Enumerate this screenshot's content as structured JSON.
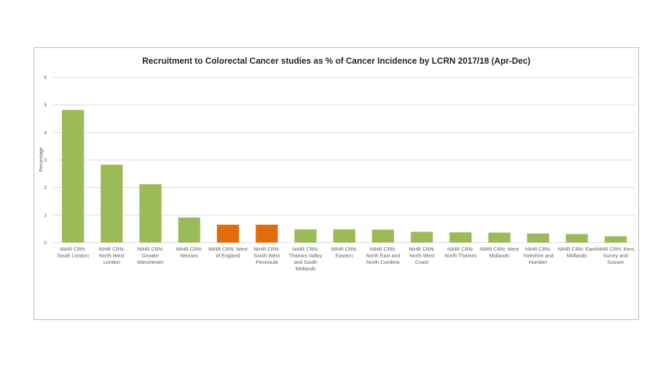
{
  "chart_data": {
    "type": "bar",
    "title": "Recruitment to Colorectal Cancer studies as % of Cancer Incidence by LCRN 2017/18 (Apr-Dec)",
    "xlabel": "",
    "ylabel": "Percentage",
    "ylim": [
      0,
      6
    ],
    "yticks": [
      "0",
      "1",
      "2",
      "3",
      "4",
      "5",
      "6"
    ],
    "grid": true,
    "categories": [
      [
        "NIHR CRN:",
        "South London"
      ],
      [
        "NIHR CRN:",
        "North West",
        "London"
      ],
      [
        "NIHR CRN:",
        "Greater",
        "Manchester"
      ],
      [
        "NIHR CRN:",
        "Wessex"
      ],
      [
        "NIHR CRN: West",
        "of England"
      ],
      [
        "NIHR CRN:",
        "South West",
        "Peninsula"
      ],
      [
        "NIHR CRN:",
        "Thames Valley",
        "and South",
        "Midlands"
      ],
      [
        "NIHR CRN:",
        "Eastern"
      ],
      [
        "NIHR CRN:",
        "North East and",
        "North Cumbria"
      ],
      [
        "NIHR CRN:",
        "North West",
        "Coast"
      ],
      [
        "NIHR CRN:",
        "North Thames"
      ],
      [
        "NIHR CRN: West",
        "Midlands"
      ],
      [
        "NIHR CRN:",
        "Yorkshire and",
        "Humber"
      ],
      [
        "NIHR CRN: East",
        "Midlands"
      ],
      [
        "NIHR CRN: Kent,",
        "Surrey and",
        "Sussex"
      ]
    ],
    "values": [
      4.82,
      2.83,
      2.12,
      0.91,
      0.65,
      0.65,
      0.48,
      0.48,
      0.47,
      0.39,
      0.37,
      0.36,
      0.33,
      0.31,
      0.23
    ],
    "bar_colors": [
      "#9bbb59",
      "#9bbb59",
      "#9bbb59",
      "#9bbb59",
      "#e36c0a",
      "#e36c0a",
      "#9bbb59",
      "#9bbb59",
      "#9bbb59",
      "#9bbb59",
      "#9bbb59",
      "#9bbb59",
      "#9bbb59",
      "#9bbb59",
      "#9bbb59"
    ]
  }
}
